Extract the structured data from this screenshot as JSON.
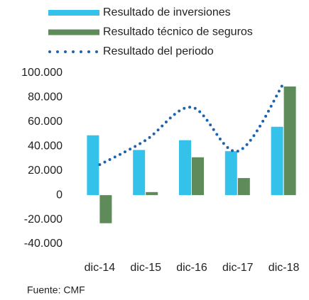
{
  "chart_data": {
    "type": "bar_line",
    "categories": [
      "dic-14",
      "dic-15",
      "dic-16",
      "dic-17",
      "dic-18"
    ],
    "series": [
      {
        "name": "Resultado de inversiones",
        "type": "bar",
        "color": "#35c2ea",
        "values": [
          49000,
          37000,
          45000,
          36000,
          56000
        ]
      },
      {
        "name": "Resultado técnico de seguros",
        "type": "bar",
        "color": "#5f8b5b",
        "values": [
          -23000,
          2500,
          31000,
          14000,
          89000
        ]
      },
      {
        "name": "Resultado del periodo",
        "type": "line",
        "color": "#1f63ad",
        "values": [
          25000,
          45000,
          72000,
          36000,
          92000
        ]
      }
    ],
    "ylim": [
      -40000,
      100000
    ],
    "yticks": [
      {
        "value": -40000,
        "label": "-40.000"
      },
      {
        "value": -20000,
        "label": "-20.000"
      },
      0,
      {
        "value": 20000,
        "label": "20.000"
      },
      {
        "value": 40000,
        "label": "40.000"
      },
      {
        "value": 60000,
        "label": "60.000"
      },
      {
        "value": 80000,
        "label": "80.000"
      },
      {
        "value": 100000,
        "label": "100.000"
      }
    ],
    "grid": false,
    "source": "Fuente: CMF"
  }
}
